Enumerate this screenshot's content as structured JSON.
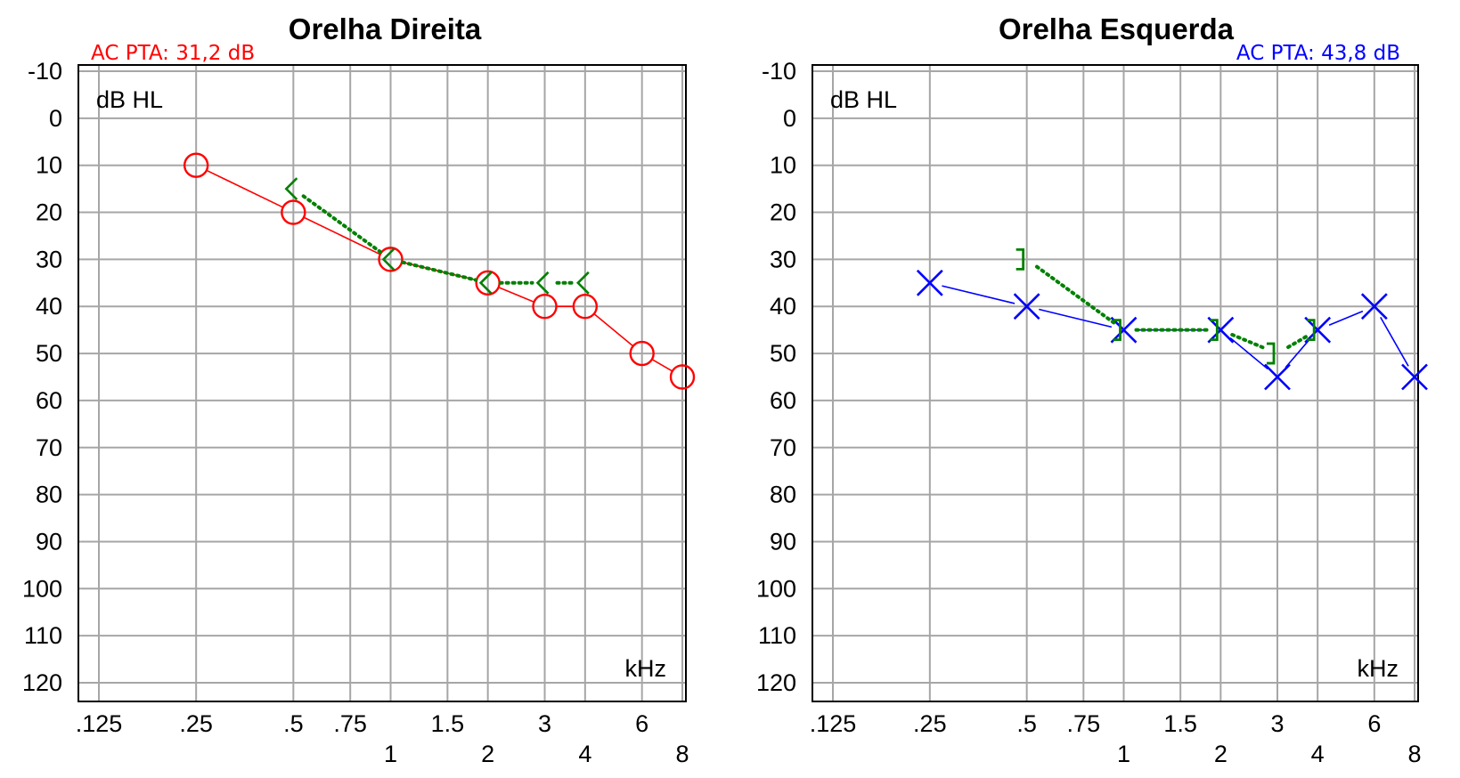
{
  "chart_data": [
    {
      "type": "line",
      "title": "Orelha Direita",
      "annotation": "AC PTA: 31,2 dB",
      "annotation_color": "#ff0000",
      "ylabel": "dB HL",
      "xlabel": "kHz",
      "y_ticks": [
        "-10",
        "0",
        "10",
        "20",
        "30",
        "40",
        "50",
        "60",
        "70",
        "80",
        "90",
        "100",
        "110",
        "120"
      ],
      "ylim": [
        -10,
        120
      ],
      "y_inverted": true,
      "x_scale": "log",
      "x_ticks_upper": [
        ".125",
        ".25",
        ".5",
        ".75",
        "1.5",
        "3",
        "6"
      ],
      "x_ticks_lower": [
        "1",
        "2",
        "4",
        "8"
      ],
      "grid": true,
      "series": [
        {
          "kind": "air-conduction",
          "marker": "circle",
          "color": "#ff0000",
          "line": "solid",
          "x": [
            0.25,
            0.5,
            1,
            2,
            3,
            4,
            6,
            8
          ],
          "y": [
            10,
            20,
            30,
            35,
            40,
            40,
            50,
            55
          ]
        },
        {
          "kind": "bone-conduction",
          "marker": "bracket-left",
          "color": "#008000",
          "line": "dotted",
          "x": [
            0.5,
            1,
            2,
            3,
            4
          ],
          "y": [
            15,
            30,
            35,
            35,
            35
          ]
        }
      ]
    },
    {
      "type": "line",
      "title": "Orelha Esquerda",
      "annotation": "AC PTA: 43,8 dB",
      "annotation_color": "#0000ff",
      "ylabel": "dB HL",
      "xlabel": "kHz",
      "y_ticks": [
        "-10",
        "0",
        "10",
        "20",
        "30",
        "40",
        "50",
        "60",
        "70",
        "80",
        "90",
        "100",
        "110",
        "120"
      ],
      "ylim": [
        -10,
        120
      ],
      "y_inverted": true,
      "x_scale": "log",
      "x_ticks_upper": [
        ".125",
        ".25",
        ".5",
        ".75",
        "1.5",
        "3",
        "6"
      ],
      "x_ticks_lower": [
        "1",
        "2",
        "4",
        "8"
      ],
      "grid": true,
      "series": [
        {
          "kind": "air-conduction",
          "marker": "cross",
          "color": "#0000ff",
          "line": "solid",
          "x": [
            0.25,
            0.5,
            1,
            2,
            3,
            4,
            6,
            8
          ],
          "y": [
            35,
            40,
            45,
            45,
            55,
            45,
            40,
            55
          ]
        },
        {
          "kind": "bone-conduction",
          "marker": "bracket-right",
          "color": "#008000",
          "line": "dotted",
          "x": [
            0.5,
            1,
            2,
            3,
            4
          ],
          "y": [
            30,
            45,
            45,
            50,
            45
          ]
        }
      ]
    }
  ]
}
